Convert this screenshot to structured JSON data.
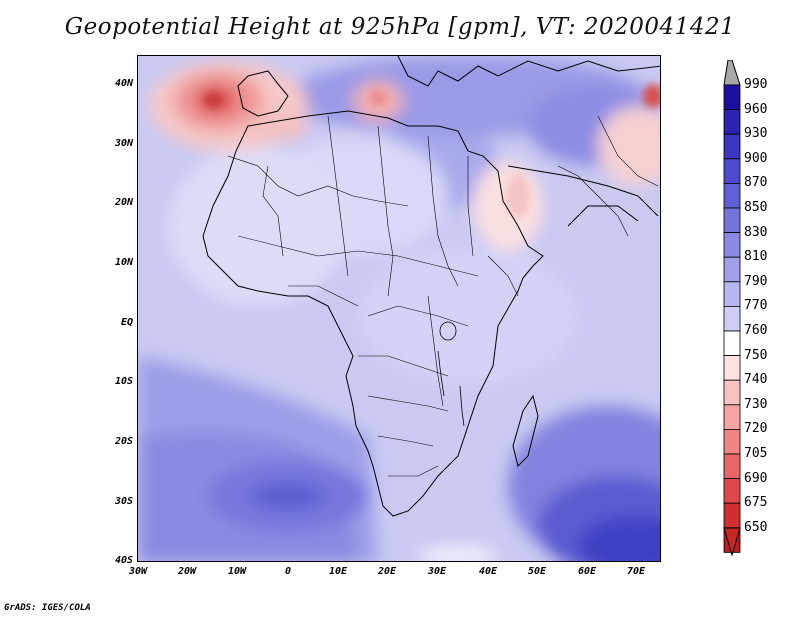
{
  "title": "Geopotential Height at 925hPa [gpm], VT: 2020041421",
  "credit": "GrADS: IGES/COLA",
  "map": {
    "lat_labels": [
      "40N",
      "30N",
      "20N",
      "10N",
      "EQ",
      "10S",
      "20S",
      "30S",
      "40S"
    ],
    "lon_labels": [
      "30W",
      "20W",
      "10W",
      "0",
      "10E",
      "20E",
      "30E",
      "40E",
      "50E",
      "60E",
      "70E"
    ]
  },
  "colorbar": {
    "levels": [
      "990",
      "960",
      "930",
      "900",
      "870",
      "850",
      "830",
      "810",
      "790",
      "770",
      "760",
      "750",
      "740",
      "730",
      "720",
      "705",
      "690",
      "675",
      "650"
    ],
    "colors": [
      "#1a0fa0",
      "#2a22b2",
      "#3a36c2",
      "#4b49cf",
      "#5f5fd8",
      "#7575de",
      "#8a8ae4",
      "#a0a0ea",
      "#b6b6f0",
      "#cfcff6",
      "#ffffff",
      "#ffe0e0",
      "#fbc2c2",
      "#f5a3a3",
      "#ef8585",
      "#e86666",
      "#df4848",
      "#d12f2f",
      "#b81c1c"
    ],
    "over_color": "#a8a8a8",
    "under_color": "#c62828"
  }
}
